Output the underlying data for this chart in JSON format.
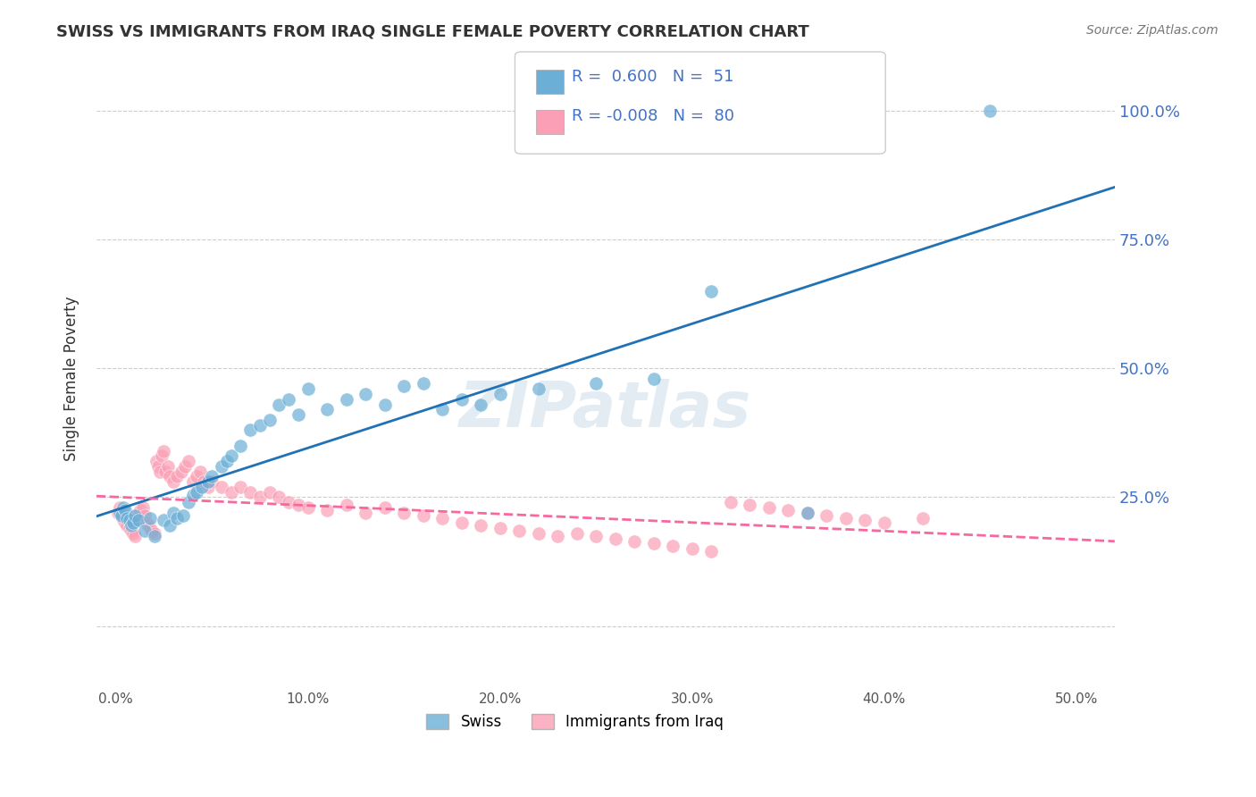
{
  "title": "SWISS VS IMMIGRANTS FROM IRAQ SINGLE FEMALE POVERTY CORRELATION CHART",
  "source": "Source: ZipAtlas.com",
  "xlabel": "",
  "ylabel": "Single Female Poverty",
  "x_ticks": [
    0.0,
    0.1,
    0.2,
    0.3,
    0.4,
    0.5
  ],
  "x_tick_labels": [
    "0.0%",
    "10.0%",
    "20.0%",
    "30.0%",
    "40.0%",
    "50.0%"
  ],
  "y_ticks": [
    0.0,
    0.25,
    0.5,
    0.75,
    1.0
  ],
  "y_tick_labels": [
    "",
    "25.0%",
    "50.0%",
    "75.0%",
    "100.0%"
  ],
  "xlim": [
    -0.01,
    0.52
  ],
  "ylim": [
    -0.12,
    1.08
  ],
  "swiss_R": 0.6,
  "swiss_N": 51,
  "iraq_R": -0.008,
  "iraq_N": 80,
  "swiss_color": "#6baed6",
  "iraq_color": "#fa9fb5",
  "swiss_line_color": "#2171b5",
  "iraq_line_color": "#f768a1",
  "watermark": "ZIPatlas",
  "swiss_x": [
    0.002,
    0.003,
    0.004,
    0.005,
    0.006,
    0.007,
    0.008,
    0.009,
    0.01,
    0.012,
    0.015,
    0.018,
    0.02,
    0.025,
    0.028,
    0.03,
    0.032,
    0.035,
    0.038,
    0.04,
    0.042,
    0.045,
    0.048,
    0.05,
    0.055,
    0.058,
    0.06,
    0.065,
    0.07,
    0.075,
    0.08,
    0.085,
    0.09,
    0.095,
    0.1,
    0.11,
    0.12,
    0.13,
    0.14,
    0.15,
    0.16,
    0.17,
    0.18,
    0.19,
    0.2,
    0.22,
    0.25,
    0.28,
    0.31,
    0.36,
    0.455
  ],
  "swiss_y": [
    0.22,
    0.215,
    0.23,
    0.225,
    0.21,
    0.205,
    0.195,
    0.2,
    0.215,
    0.205,
    0.185,
    0.21,
    0.175,
    0.205,
    0.195,
    0.22,
    0.21,
    0.215,
    0.24,
    0.255,
    0.26,
    0.27,
    0.28,
    0.29,
    0.31,
    0.32,
    0.33,
    0.35,
    0.38,
    0.39,
    0.4,
    0.43,
    0.44,
    0.41,
    0.46,
    0.42,
    0.44,
    0.45,
    0.43,
    0.465,
    0.47,
    0.42,
    0.44,
    0.43,
    0.45,
    0.46,
    0.47,
    0.48,
    0.65,
    0.22,
    1.0
  ],
  "iraq_x": [
    0.001,
    0.002,
    0.003,
    0.004,
    0.005,
    0.006,
    0.007,
    0.008,
    0.009,
    0.01,
    0.011,
    0.012,
    0.013,
    0.014,
    0.015,
    0.016,
    0.017,
    0.018,
    0.019,
    0.02,
    0.021,
    0.022,
    0.023,
    0.024,
    0.025,
    0.026,
    0.027,
    0.028,
    0.03,
    0.032,
    0.034,
    0.036,
    0.038,
    0.04,
    0.042,
    0.044,
    0.046,
    0.048,
    0.05,
    0.055,
    0.06,
    0.065,
    0.07,
    0.075,
    0.08,
    0.085,
    0.09,
    0.095,
    0.1,
    0.11,
    0.12,
    0.13,
    0.14,
    0.15,
    0.16,
    0.17,
    0.18,
    0.19,
    0.2,
    0.21,
    0.22,
    0.23,
    0.24,
    0.25,
    0.26,
    0.27,
    0.28,
    0.29,
    0.3,
    0.31,
    0.32,
    0.33,
    0.34,
    0.35,
    0.36,
    0.37,
    0.38,
    0.39,
    0.4,
    0.42
  ],
  "iraq_y": [
    0.22,
    0.23,
    0.215,
    0.205,
    0.2,
    0.195,
    0.19,
    0.185,
    0.18,
    0.175,
    0.21,
    0.22,
    0.225,
    0.23,
    0.215,
    0.2,
    0.195,
    0.19,
    0.185,
    0.18,
    0.32,
    0.31,
    0.3,
    0.33,
    0.34,
    0.3,
    0.31,
    0.29,
    0.28,
    0.29,
    0.3,
    0.31,
    0.32,
    0.28,
    0.29,
    0.3,
    0.28,
    0.27,
    0.28,
    0.27,
    0.26,
    0.27,
    0.26,
    0.25,
    0.26,
    0.25,
    0.24,
    0.235,
    0.23,
    0.225,
    0.235,
    0.22,
    0.23,
    0.22,
    0.215,
    0.21,
    0.2,
    0.195,
    0.19,
    0.185,
    0.18,
    0.175,
    0.18,
    0.175,
    0.17,
    0.165,
    0.16,
    0.155,
    0.15,
    0.145,
    0.24,
    0.235,
    0.23,
    0.225,
    0.22,
    0.215,
    0.21,
    0.205,
    0.2,
    0.21
  ]
}
